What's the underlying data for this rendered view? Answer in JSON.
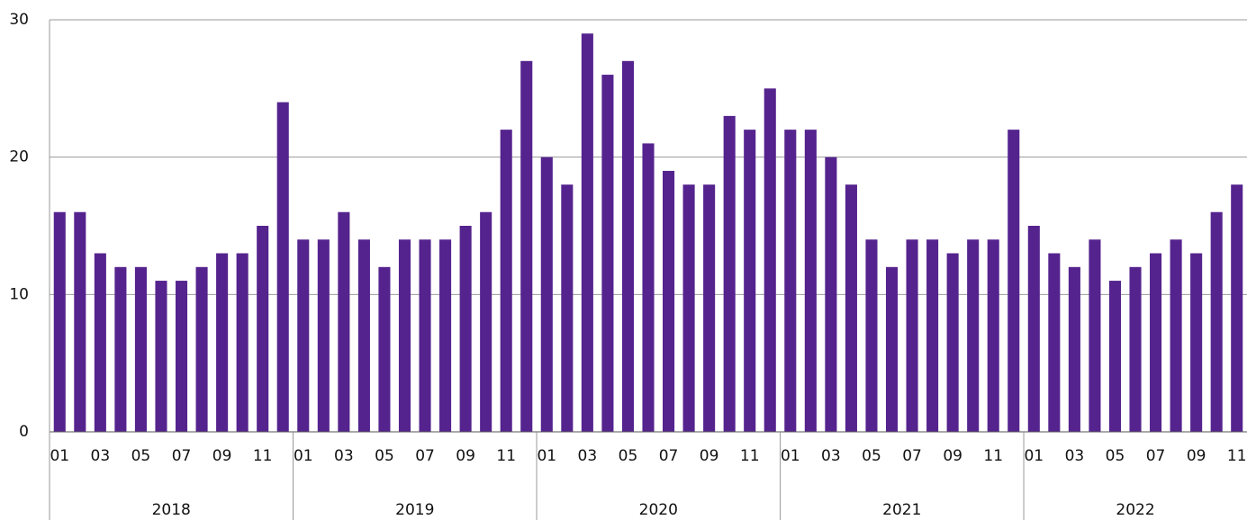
{
  "chart_data": {
    "type": "bar",
    "color": "#55238e",
    "grid": true,
    "ylim": [
      0,
      30
    ],
    "yticks": [
      0,
      10,
      20,
      30
    ],
    "categories": [
      "01",
      null,
      "03",
      null,
      "05",
      null,
      "07",
      null,
      "09",
      null,
      "11",
      null,
      "01",
      null,
      "03",
      null,
      "05",
      null,
      "07",
      null,
      "09",
      null,
      "11",
      null,
      "01",
      null,
      "03",
      null,
      "05",
      null,
      "07",
      null,
      "09",
      null,
      "11",
      null,
      "01",
      null,
      "03",
      null,
      "05",
      null,
      "07",
      null,
      "09",
      null,
      "11",
      null,
      "01",
      null,
      "03",
      null,
      "05",
      null,
      "07",
      null,
      "09",
      null,
      "11"
    ],
    "groups": [
      {
        "label": "2018",
        "span": 12
      },
      {
        "label": "2019",
        "span": 12
      },
      {
        "label": "2020",
        "span": 12
      },
      {
        "label": "2021",
        "span": 12
      },
      {
        "label": "2022",
        "span": 11
      }
    ],
    "values": [
      16,
      16,
      13,
      12,
      12,
      11,
      11,
      12,
      13,
      13,
      15,
      24,
      14,
      14,
      16,
      14,
      12,
      14,
      14,
      14,
      15,
      16,
      22,
      27,
      20,
      18,
      29,
      26,
      27,
      21,
      19,
      18,
      18,
      23,
      22,
      25,
      22,
      22,
      20,
      18,
      14,
      12,
      14,
      14,
      13,
      14,
      14,
      22,
      15,
      13,
      12,
      14,
      11,
      12,
      13,
      14,
      13,
      16,
      18
    ]
  }
}
